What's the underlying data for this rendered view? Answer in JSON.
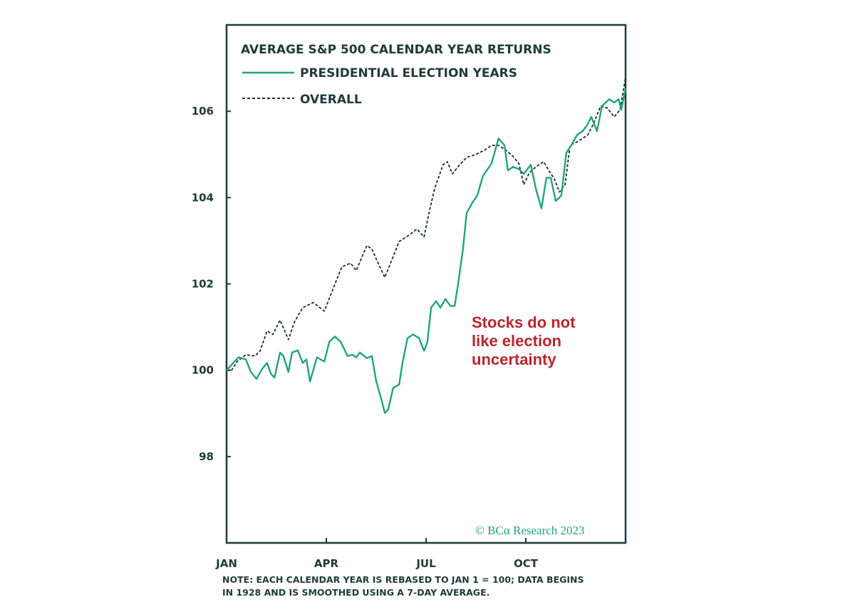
{
  "chart_data": {
    "type": "line",
    "title": "AVERAGE S&P 500 CALENDAR YEAR RETURNS",
    "xlabel": "",
    "ylabel": "",
    "x_unit": "months since Jan 1",
    "xlim": [
      0,
      12
    ],
    "ylim": [
      96,
      108
    ],
    "x_ticks": [
      {
        "value": 0,
        "label": "JAN"
      },
      {
        "value": 3,
        "label": "APR"
      },
      {
        "value": 6,
        "label": "JUL"
      },
      {
        "value": 9,
        "label": "OCT"
      }
    ],
    "y_ticks": [
      {
        "value": 98,
        "label": "98"
      },
      {
        "value": 100,
        "label": "100"
      },
      {
        "value": 102,
        "label": "102"
      },
      {
        "value": 104,
        "label": "104"
      },
      {
        "value": 106,
        "label": "106"
      }
    ],
    "grid": false,
    "legend_position": "top-left",
    "series": [
      {
        "name": "PRESIDENTIAL ELECTION YEARS",
        "color": "#22a37d",
        "style": "solid",
        "x": [
          0,
          0.36,
          0.58,
          0.73,
          0.9,
          1.07,
          1.22,
          1.33,
          1.44,
          1.61,
          1.71,
          1.86,
          1.97,
          2.14,
          2.29,
          2.4,
          2.51,
          2.72,
          2.94,
          3.09,
          3.26,
          3.43,
          3.64,
          3.79,
          3.9,
          4.01,
          4.22,
          4.37,
          4.5,
          4.65,
          4.76,
          4.86,
          5.01,
          5.19,
          5.29,
          5.44,
          5.61,
          5.79,
          5.94,
          6.04,
          6.15,
          6.3,
          6.43,
          6.58,
          6.73,
          6.86,
          6.96,
          7.11,
          7.22,
          7.39,
          7.54,
          7.71,
          7.97,
          8.18,
          8.36,
          8.46,
          8.61,
          8.79,
          8.94,
          9.15,
          9.3,
          9.47,
          9.62,
          9.75,
          9.9,
          10.07,
          10.22,
          10.37,
          10.54,
          10.71,
          10.86,
          10.97,
          11.14,
          11.29,
          11.51,
          11.66,
          11.79,
          11.87,
          12
        ],
        "values": [
          100,
          100.3,
          100.25,
          99.96,
          99.8,
          100.03,
          100.17,
          99.92,
          99.83,
          100.41,
          100.33,
          99.96,
          100.41,
          100.46,
          100.17,
          100.25,
          99.74,
          100.3,
          100.2,
          100.66,
          100.78,
          100.66,
          100.33,
          100.36,
          100.3,
          100.41,
          100.28,
          100.33,
          99.75,
          99.34,
          99.01,
          99.09,
          99.59,
          99.67,
          100.17,
          100.74,
          100.83,
          100.74,
          100.45,
          100.66,
          101.45,
          101.6,
          101.45,
          101.65,
          101.49,
          101.49,
          101.98,
          102.81,
          103.64,
          103.88,
          104.05,
          104.5,
          104.79,
          105.37,
          105.21,
          104.63,
          104.71,
          104.66,
          104.55,
          104.76,
          104.21,
          103.75,
          104.46,
          104.46,
          103.92,
          104.05,
          105.04,
          105.21,
          105.45,
          105.54,
          105.7,
          105.87,
          105.54,
          106.12,
          106.28,
          106.2,
          106.28,
          106.03,
          106.53
        ]
      },
      {
        "name": "OVERALL",
        "color": "#1f2d2d",
        "style": "dashed",
        "x": [
          0,
          0.15,
          0.32,
          0.58,
          0.86,
          1.01,
          1.22,
          1.39,
          1.61,
          1.86,
          2.04,
          2.29,
          2.61,
          2.94,
          3.21,
          3.47,
          3.73,
          3.9,
          4.22,
          4.37,
          4.54,
          4.76,
          4.93,
          5.19,
          5.51,
          5.72,
          5.94,
          6.11,
          6.26,
          6.51,
          6.64,
          6.79,
          7.01,
          7.22,
          7.5,
          7.76,
          7.97,
          8.18,
          8.4,
          8.61,
          8.79,
          8.94,
          9.11,
          9.3,
          9.54,
          9.69,
          9.86,
          10.01,
          10.18,
          10.33,
          10.54,
          10.71,
          10.86,
          11.03,
          11.25,
          11.44,
          11.66,
          11.83,
          12
        ],
        "values": [
          100,
          100,
          100.2,
          100.36,
          100.33,
          100.45,
          100.91,
          100.83,
          101.16,
          100.71,
          101.12,
          101.45,
          101.57,
          101.37,
          101.9,
          102.4,
          102.48,
          102.31,
          102.89,
          102.81,
          102.51,
          102.15,
          102.48,
          102.98,
          103.14,
          103.27,
          103.09,
          103.72,
          104.21,
          104.76,
          104.83,
          104.55,
          104.76,
          104.93,
          105,
          105.1,
          105.21,
          105.21,
          105.1,
          104.96,
          104.79,
          104.3,
          104.58,
          104.71,
          104.83,
          104.63,
          104.43,
          104.13,
          104.3,
          105.21,
          105.29,
          105.37,
          105.45,
          105.7,
          106.12,
          106.08,
          105.87,
          106.03,
          106.78
        ]
      }
    ],
    "annotations": [
      {
        "lines": [
          "Stocks do not",
          "like election",
          "uncertainty"
        ],
        "color": "#b8262b"
      }
    ],
    "copyright": "© BCα Research 2023",
    "note_lines": [
      "NOTE: EACH CALENDAR YEAR IS REBASED TO JAN 1 = 100; DATA BEGINS",
      "IN 1928 AND IS SMOOTHED USING A 7-DAY AVERAGE."
    ]
  }
}
